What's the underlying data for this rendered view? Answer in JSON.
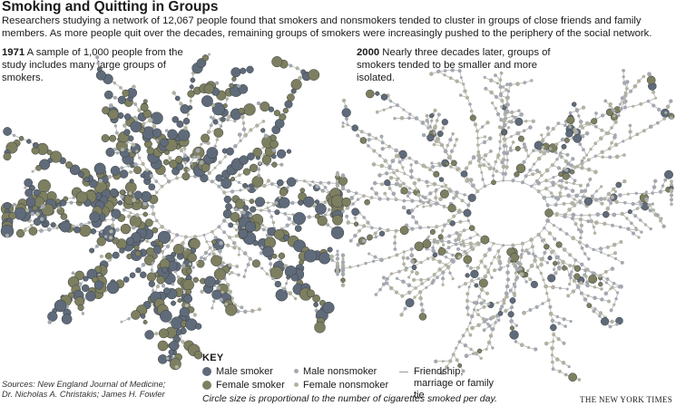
{
  "title": "Smoking and Quitting in Groups",
  "intro": "Researchers studying a network of 12,067 people found that smokers and nonsmokers tended to cluster in groups of close friends and family members. As more people quit over the decades, remaining groups of smokers were increasingly pushed to the periphery of the social network.",
  "panels": [
    {
      "year": "1971",
      "caption": "A sample of 1,000 people from the study includes many large groups of smokers."
    },
    {
      "year": "2000",
      "caption": "Nearly three decades later, groups of smokers tended to be smaller and more isolated."
    }
  ],
  "key": {
    "title": "KEY",
    "items": [
      {
        "label": "Male smoker",
        "color": "#5f6b7a"
      },
      {
        "label": "Female smoker",
        "color": "#7d7f60"
      },
      {
        "label": "Male nonsmoker",
        "color": "#a4a9b0"
      },
      {
        "label": "Female nonsmoker",
        "color": "#b1b2a2"
      },
      {
        "label": "Friendship, marriage or family tie",
        "color": "#9a9a9a"
      }
    ],
    "circle_note": "Circle size is proportional to the number of cigarettes smoked per day."
  },
  "sources": [
    "Sources: New England Journal of Medicine;",
    "Dr. Nicholas A. Christakis; James H. Fowler"
  ],
  "credit": "THE NEW YORK TIMES"
}
